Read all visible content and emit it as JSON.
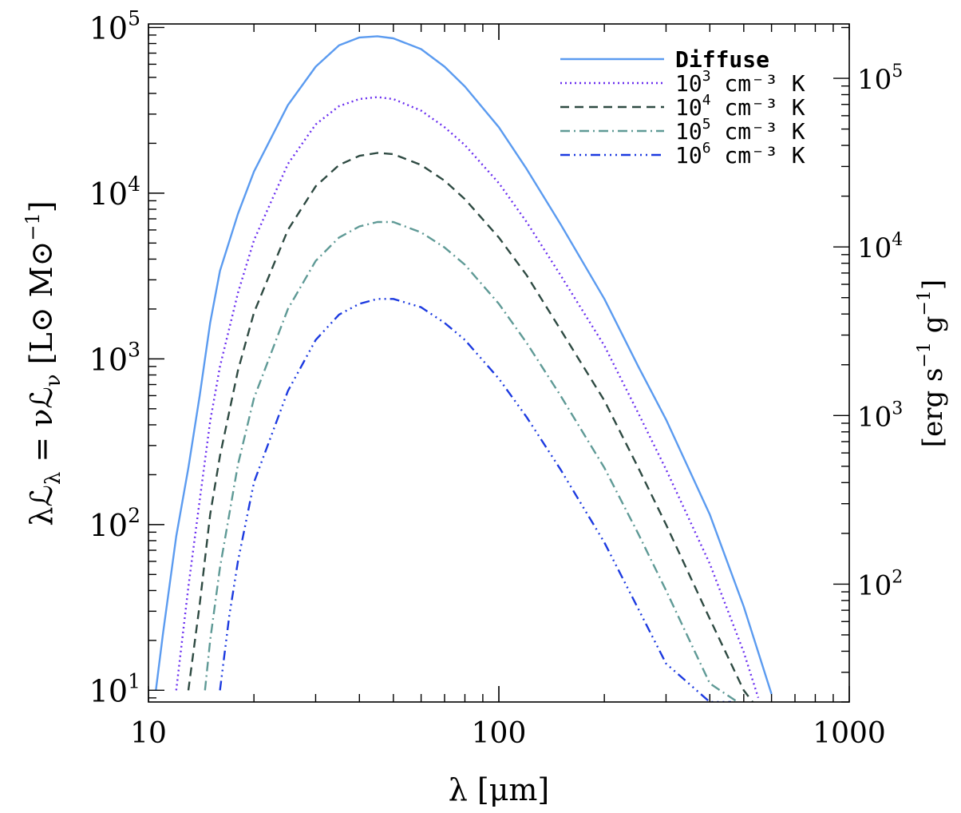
{
  "chart_data": {
    "type": "line",
    "xscale": "log",
    "yscale": "log",
    "xlim": [
      10,
      1000
    ],
    "ylim": [
      8.5,
      105000
    ],
    "ylim_right": [
      20,
      210000
    ],
    "xlabel": "λ [μm]",
    "ylabel": "λℒλ = νℒν [L⊙ M⊙⁻¹]",
    "ylabel_parts": {
      "lead": "λℒ",
      "sub1": "λ",
      "mid": " = νℒ",
      "sub2": "ν",
      "unit": " [L⊙ M⊙",
      "exp": "−1",
      "close": "]"
    },
    "ylabel_right": "[erg s⁻¹ g⁻¹]",
    "ylabel_right_parts": {
      "a": "[erg s",
      "e1": "−1",
      "b": " g",
      "e2": "−1",
      "c": "]"
    },
    "x_ticks": [
      {
        "value": 10,
        "label": "10"
      },
      {
        "value": 100,
        "label": "100"
      },
      {
        "value": 1000,
        "label": "1000"
      }
    ],
    "y_ticks": [
      {
        "value": 10,
        "base": "10",
        "exp": "1"
      },
      {
        "value": 100,
        "base": "10",
        "exp": "2"
      },
      {
        "value": 1000,
        "base": "10",
        "exp": "3"
      },
      {
        "value": 10000,
        "base": "10",
        "exp": "4"
      },
      {
        "value": 100000,
        "base": "10",
        "exp": "5"
      }
    ],
    "y_ticks_right": [
      {
        "value": 100,
        "base": "10",
        "exp": "2"
      },
      {
        "value": 1000,
        "base": "10",
        "exp": "3"
      },
      {
        "value": 10000,
        "base": "10",
        "exp": "4"
      },
      {
        "value": 100000,
        "base": "10",
        "exp": "5"
      }
    ],
    "legend_position": "top-right",
    "series": [
      {
        "name": "Diffuse",
        "label_base": "Diffuse",
        "label_exp": "",
        "label_rest": "",
        "color": "#5b9bf0",
        "style": "solid",
        "x": [
          10.5,
          11,
          12,
          13,
          14,
          15,
          16,
          18,
          20,
          25,
          30,
          35,
          40,
          45,
          50,
          60,
          70,
          80,
          100,
          120,
          150,
          200,
          250,
          300,
          400,
          500,
          600
        ],
        "y": [
          10,
          22,
          85,
          220,
          600,
          1650,
          3400,
          7500,
          13500,
          34000,
          58000,
          78000,
          87000,
          88500,
          86000,
          74000,
          58000,
          44000,
          25000,
          14000,
          6500,
          2300,
          900,
          430,
          115,
          32,
          9.5
        ]
      },
      {
        "name": "10³ cm⁻³ K",
        "label_base": "10",
        "label_exp": "3",
        "label_rest": " cm⁻³ K",
        "color": "#6a2ef0",
        "style": "dotted",
        "x": [
          12,
          13,
          14,
          15,
          16,
          18,
          20,
          25,
          30,
          35,
          40,
          45,
          50,
          60,
          70,
          80,
          100,
          120,
          150,
          200,
          250,
          300,
          400,
          500,
          550
        ],
        "y": [
          10,
          42,
          140,
          420,
          900,
          2500,
          5200,
          15000,
          26000,
          33500,
          37000,
          38000,
          37000,
          31500,
          25000,
          19500,
          11500,
          6700,
          3200,
          1200,
          470,
          215,
          58,
          17,
          9
        ]
      },
      {
        "name": "10⁴ cm⁻³ K",
        "label_base": "10",
        "label_exp": "4",
        "label_rest": " cm⁻³ K",
        "color": "#2e4a42",
        "style": "dashed",
        "x": [
          13,
          14,
          15,
          16,
          18,
          20,
          25,
          30,
          35,
          40,
          45,
          50,
          60,
          70,
          80,
          100,
          120,
          150,
          200,
          250,
          300,
          400,
          500,
          530
        ],
        "y": [
          10,
          33,
          115,
          260,
          850,
          1900,
          6000,
          11000,
          14800,
          16800,
          17500,
          17200,
          14800,
          11900,
          9200,
          5400,
          3200,
          1500,
          560,
          220,
          100,
          27,
          10,
          8.5
        ]
      },
      {
        "name": "10⁵ cm⁻³ K",
        "label_base": "10",
        "label_exp": "5",
        "label_rest": " cm⁻³ K",
        "color": "#5f9a96",
        "style": "dashdot",
        "x": [
          14.5,
          15,
          16,
          18,
          20,
          25,
          30,
          35,
          40,
          45,
          50,
          60,
          70,
          80,
          100,
          120,
          150,
          200,
          250,
          300,
          400,
          480
        ],
        "y": [
          10,
          20,
          55,
          230,
          580,
          2000,
          3900,
          5400,
          6300,
          6700,
          6700,
          5800,
          4700,
          3700,
          2150,
          1250,
          600,
          220,
          88,
          40,
          11,
          8.5
        ]
      },
      {
        "name": "10⁶ cm⁻³ K",
        "label_base": "10",
        "label_exp": "6",
        "label_rest": " cm⁻³ K",
        "color": "#1c3ae0",
        "style": "dashdotdotdot",
        "x": [
          16,
          17,
          18,
          20,
          25,
          30,
          35,
          40,
          45,
          50,
          60,
          70,
          80,
          100,
          120,
          150,
          200,
          250,
          300,
          400,
          460
        ],
        "y": [
          10,
          28,
          60,
          180,
          640,
          1300,
          1850,
          2150,
          2300,
          2300,
          2050,
          1650,
          1300,
          760,
          445,
          215,
          78,
          31,
          14.5,
          8.5,
          8.5
        ]
      }
    ]
  }
}
